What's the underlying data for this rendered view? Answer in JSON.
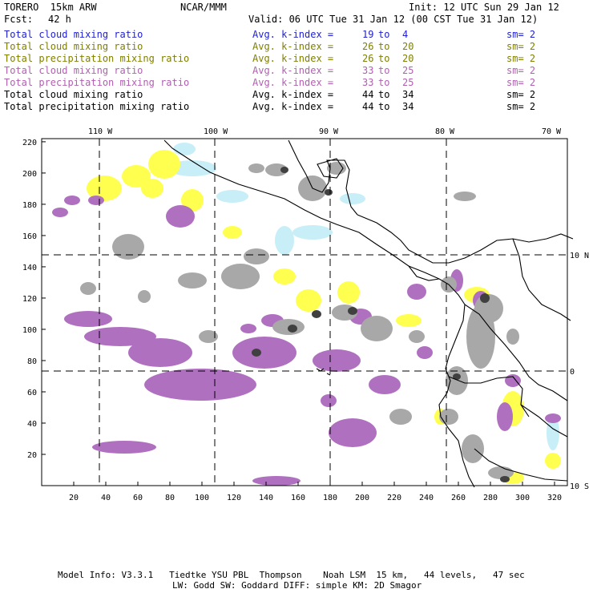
{
  "header": {
    "model": "TORERO  15km ARW",
    "org": "NCAR/MMM",
    "init": "Init: 12 UTC Sun 29 Jan 12",
    "fcst_label": "Fcst:",
    "fcst_value": "42 h",
    "valid": "Valid: 06 UTC Tue 31 Jan 12 (00 CST Tue 31 Jan 12)"
  },
  "legend": [
    {
      "field": "Total cloud mixing ratio",
      "index": "Avg. k-index =",
      "from": "19",
      "to_label": "to",
      "to": "4",
      "sm": "sm= 2",
      "color": "#1f1fcf"
    },
    {
      "field": "Total cloud mixing ratio",
      "index": "Avg. k-index =",
      "from": "26",
      "to_label": "to",
      "to": "20",
      "sm": "sm= 2",
      "color": "#7f7f00"
    },
    {
      "field": "Total precipitation mixing ratio",
      "index": "Avg. k-index =",
      "from": "26",
      "to_label": "to",
      "to": "20",
      "sm": "sm= 2",
      "color": "#7f7f00"
    },
    {
      "field": "Total cloud mixing ratio",
      "index": "Avg. k-index =",
      "from": "33",
      "to_label": "to",
      "to": "25",
      "sm": "sm= 2",
      "color": "#b060b0"
    },
    {
      "field": "Total precipitation mixing ratio",
      "index": "Avg. k-index =",
      "from": "33",
      "to_label": "to",
      "to": "25",
      "sm": "sm= 2",
      "color": "#b060b0"
    },
    {
      "field": "Total cloud mixing ratio",
      "index": "Avg. k-index =",
      "from": "44",
      "to_label": "to",
      "to": "34",
      "sm": "sm= 2",
      "color": "#000000"
    },
    {
      "field": "Total precipitation mixing ratio",
      "index": "Avg. k-index =",
      "from": "44",
      "to_label": "to",
      "to": "34",
      "sm": "sm= 2",
      "color": "#000000"
    }
  ],
  "map": {
    "colors": {
      "cyan": "#c8eef8",
      "yellow": "#ffff50",
      "magenta": "#b070c0",
      "gray": "#a8a8a8",
      "dark": "#404040",
      "land": "#000000",
      "grid": "#000000"
    },
    "lon_labels": [
      "110 W",
      "100 W",
      "90 W",
      "80 W",
      "70 W"
    ],
    "lat_labels": [
      "10 N",
      "0",
      "10 S"
    ],
    "x_ticks": [
      "20",
      "40",
      "60",
      "80",
      "100",
      "120",
      "140",
      "160",
      "180",
      "200",
      "220",
      "240",
      "260",
      "280",
      "300",
      "320"
    ],
    "y_ticks": [
      "20",
      "40",
      "60",
      "80",
      "100",
      "120",
      "140",
      "160",
      "180",
      "200",
      "220"
    ]
  },
  "footer": {
    "line1": "Model Info: V3.3.1   Tiedtke YSU PBL  Thompson    Noah LSM  15 km,   44 levels,   47 sec",
    "line2": "LW: Godd SW: Goddard DIFF: simple KM: 2D Smagor"
  }
}
